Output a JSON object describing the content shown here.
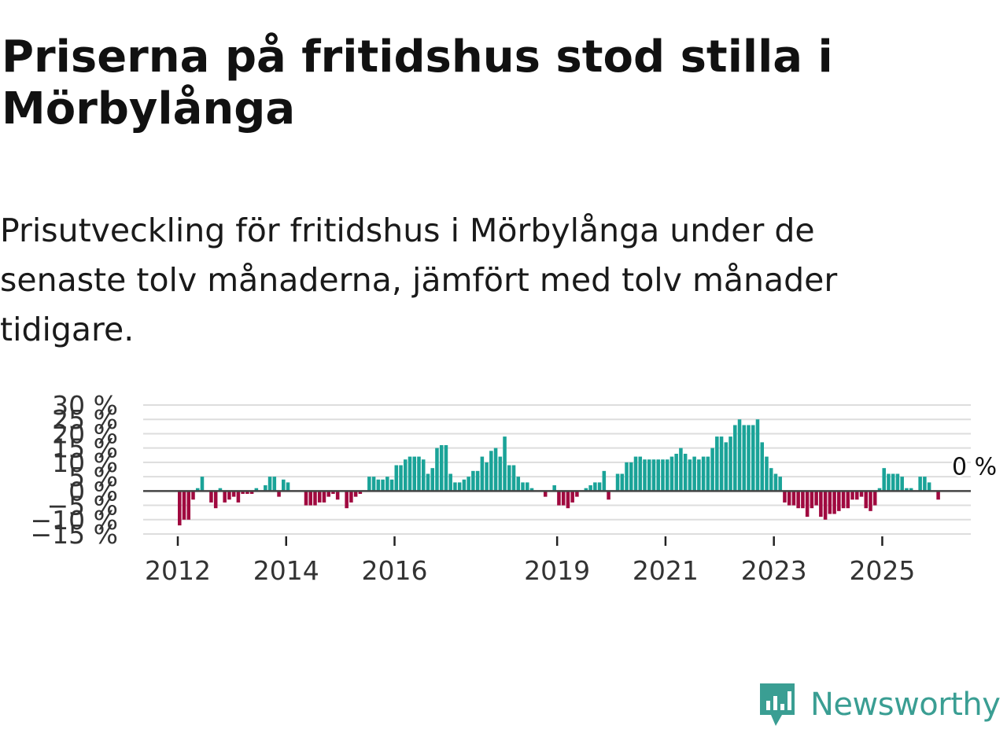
{
  "header": {
    "title": "Priserna på fritidshus stod stilla i Mörbylånga",
    "subtitle": "Prisutveckling för fritidshus i Mörbylånga under de senaste tolv månaderna, jämfört med tolv månader tidigare."
  },
  "brand": {
    "name": "Newsworthy"
  },
  "colors": {
    "positive": "#1aa398",
    "negative": "#a0093f",
    "zero_line": "#444444",
    "grid": "#dddddd",
    "brand": "#3a9e93"
  },
  "chart_data": {
    "type": "bar",
    "title": "Priserna på fritidshus stod stilla i Mörbylånga",
    "xlabel": "",
    "ylabel": "",
    "ylim": [
      -15,
      30
    ],
    "yticks": [
      30,
      25,
      20,
      15,
      10,
      5,
      0,
      -5,
      -10,
      -15
    ],
    "ytick_labels": [
      "30 %",
      "25 %",
      "20 %",
      "15 %",
      "10 %",
      "5 %",
      "0 %",
      "−5 %",
      "−10 %",
      "−15 %"
    ],
    "xticks": [
      {
        "label": "2012",
        "year": 2012
      },
      {
        "label": "2014",
        "year": 2014
      },
      {
        "label": "2016",
        "year": 2016
      },
      {
        "label": "2019",
        "year": 2019
      },
      {
        "label": "2021",
        "year": 2021
      },
      {
        "label": "2023",
        "year": 2023
      },
      {
        "label": "2025",
        "year": 2025
      }
    ],
    "start": "2012-01",
    "frequency": "monthly",
    "annotation": {
      "label": "0 %",
      "value": 0
    },
    "values": [
      -12,
      -10,
      -10,
      -3,
      1,
      5,
      0,
      -4,
      -6,
      1,
      -4,
      -3,
      -2,
      -4,
      -1,
      -1,
      -1,
      1,
      0,
      2,
      5,
      5,
      -2,
      4,
      3,
      0,
      0,
      0,
      -5,
      -5,
      -5,
      -4,
      -4,
      -2,
      -1,
      -3,
      0,
      -6,
      -4,
      -2,
      -1,
      0,
      5,
      5,
      4,
      4,
      5,
      4,
      9,
      9,
      11,
      12,
      12,
      12,
      11,
      6,
      8,
      15,
      16,
      16,
      6,
      3,
      3,
      4,
      5,
      7,
      7,
      12,
      10,
      14,
      15,
      12,
      19,
      9,
      9,
      5,
      3,
      3,
      1,
      0,
      0,
      -2,
      0,
      2,
      -5,
      -5,
      -6,
      -4,
      -2,
      0,
      1,
      2,
      3,
      3,
      7,
      -3,
      0,
      6,
      6,
      10,
      10,
      12,
      12,
      11,
      11,
      11,
      11,
      11,
      11,
      12,
      13,
      15,
      13,
      11,
      12,
      11,
      12,
      12,
      15,
      19,
      19,
      17,
      19,
      23,
      25,
      23,
      23,
      23,
      25,
      17,
      12,
      8,
      6,
      5,
      -4,
      -5,
      -5,
      -6,
      -6,
      -9,
      -6,
      -5,
      -9,
      -10,
      -8,
      -8,
      -7,
      -6,
      -6,
      -3,
      -3,
      -2,
      -6,
      -7,
      -5,
      1,
      8,
      6,
      6,
      6,
      5,
      1,
      1,
      0,
      5,
      5,
      3,
      0,
      -3,
      0
    ]
  }
}
